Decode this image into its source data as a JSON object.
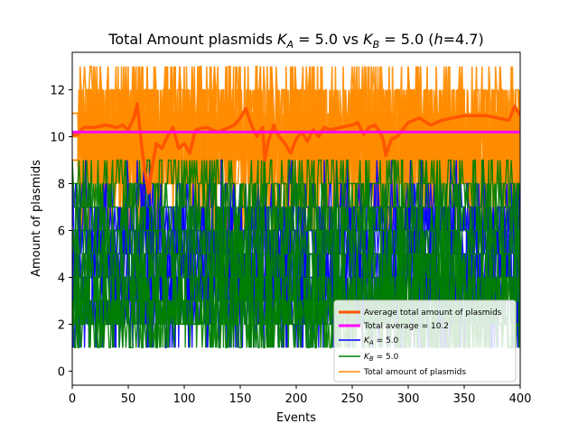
{
  "chart_data": {
    "type": "line",
    "title": {
      "prefix": "Total Amount plasmids ",
      "ka_sym": "K",
      "ka_sub": "A",
      "ka_val": " = 5.0 vs ",
      "kb_sym": "K",
      "kb_sub": "B",
      "kb_val": " = 5.0 (",
      "h_sym": "h",
      "h_val": "=4.7)"
    },
    "xlabel": "Events",
    "ylabel": "Amount of plasmids",
    "xlim": [
      0,
      400
    ],
    "ylim": [
      -0.6,
      13.6
    ],
    "xticks": [
      0,
      50,
      100,
      150,
      200,
      250,
      300,
      350,
      400
    ],
    "yticks": [
      0,
      2,
      4,
      6,
      8,
      10,
      12
    ],
    "grid": false,
    "legend_position": "lower-right",
    "legend": [
      {
        "key": "avg",
        "label": "Average total amount of plasmids",
        "color": "#ff5500"
      },
      {
        "key": "total_avg",
        "label": "Total average = 10.2",
        "color": "#ff00ff"
      },
      {
        "key": "ka",
        "label_sym": "K",
        "label_sub": "A",
        "label_val": " = 5.0",
        "color": "#0000ff"
      },
      {
        "key": "kb",
        "label_sym": "K",
        "label_sub": "B",
        "label_val": " = 5.0",
        "color": "#008000"
      },
      {
        "key": "total",
        "label": "Total amount of plasmids",
        "color": "#ff8c00"
      }
    ],
    "series": [
      {
        "name": "Average total amount of plasmids",
        "color": "#ff5500",
        "x": [
          0,
          5,
          10,
          20,
          30,
          40,
          45,
          50,
          55,
          58,
          60,
          62,
          65,
          68,
          70,
          75,
          80,
          85,
          90,
          95,
          100,
          105,
          110,
          120,
          130,
          135,
          140,
          145,
          150,
          155,
          160,
          165,
          170,
          172,
          175,
          180,
          182,
          185,
          190,
          195,
          200,
          205,
          210,
          215,
          220,
          225,
          230,
          240,
          250,
          255,
          260,
          265,
          270,
          275,
          278,
          280,
          285,
          290,
          300,
          310,
          320,
          330,
          340,
          350,
          360,
          370,
          380,
          390,
          395,
          400
        ],
        "y": [
          10.1,
          10.1,
          10.4,
          10.4,
          10.5,
          10.4,
          10.5,
          10.3,
          10.8,
          11.4,
          10.5,
          9.6,
          8.5,
          7.6,
          8.3,
          9.7,
          9.5,
          10.0,
          10.4,
          9.5,
          9.7,
          9.3,
          10.3,
          10.4,
          10.2,
          10.3,
          10.4,
          10.5,
          10.8,
          11.2,
          10.5,
          10.0,
          10.4,
          9.0,
          9.8,
          10.5,
          10.2,
          10.0,
          9.7,
          9.3,
          9.9,
          10.2,
          9.8,
          10.3,
          10.0,
          10.4,
          10.3,
          10.4,
          10.5,
          10.6,
          10.1,
          10.4,
          10.5,
          10.2,
          9.8,
          9.2,
          9.9,
          10.0,
          10.6,
          10.8,
          10.5,
          10.7,
          10.8,
          10.9,
          10.9,
          10.9,
          10.8,
          10.7,
          11.3,
          10.9
        ]
      },
      {
        "name": "Total average = 10.2",
        "color": "#ff00ff",
        "x": [
          0,
          400
        ],
        "y": [
          10.2,
          10.2
        ]
      }
    ]
  }
}
